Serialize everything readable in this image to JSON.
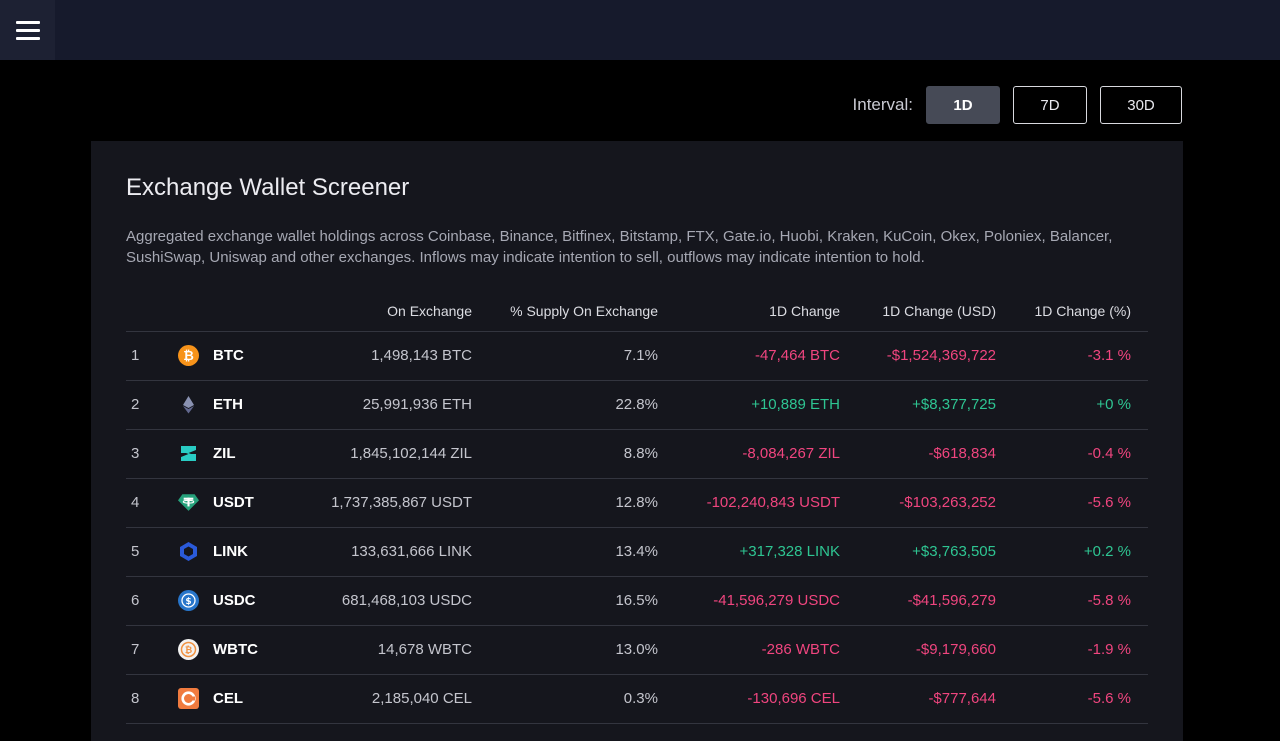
{
  "interval": {
    "label": "Interval:",
    "options": [
      "1D",
      "7D",
      "30D"
    ],
    "active": "1D"
  },
  "screener": {
    "title": "Exchange Wallet Screener",
    "description": "Aggregated exchange wallet holdings across Coinbase, Binance, Bitfinex, Bitstamp, FTX, Gate.io, Huobi, Kraken, KuCoin, Okex, Poloniex, Balancer, SushiSwap, Uniswap and other exchanges. Inflows may indicate intention to sell, outflows may indicate intention to hold."
  },
  "table": {
    "columns": [
      "On Exchange",
      "% Supply On Exchange",
      "1D Change",
      "1D Change (USD)",
      "1D Change (%)"
    ],
    "rows": [
      {
        "rank": "1",
        "symbol": "BTC",
        "icon": "bitcoin-icon",
        "on_exchange": "1,498,143 BTC",
        "supply": "7.1%",
        "change": "-47,464 BTC",
        "change_usd": "-$1,524,369,722",
        "change_pct": "-3.1 %",
        "direction": "neg"
      },
      {
        "rank": "2",
        "symbol": "ETH",
        "icon": "ethereum-icon",
        "on_exchange": "25,991,936 ETH",
        "supply": "22.8%",
        "change": "+10,889 ETH",
        "change_usd": "+$8,377,725",
        "change_pct": "+0 %",
        "direction": "pos"
      },
      {
        "rank": "3",
        "symbol": "ZIL",
        "icon": "zilliqa-icon",
        "on_exchange": "1,845,102,144 ZIL",
        "supply": "8.8%",
        "change": "-8,084,267 ZIL",
        "change_usd": "-$618,834",
        "change_pct": "-0.4 %",
        "direction": "neg"
      },
      {
        "rank": "4",
        "symbol": "USDT",
        "icon": "tether-icon",
        "on_exchange": "1,737,385,867 USDT",
        "supply": "12.8%",
        "change": "-102,240,843 USDT",
        "change_usd": "-$103,263,252",
        "change_pct": "-5.6 %",
        "direction": "neg"
      },
      {
        "rank": "5",
        "symbol": "LINK",
        "icon": "chainlink-icon",
        "on_exchange": "133,631,666 LINK",
        "supply": "13.4%",
        "change": "+317,328 LINK",
        "change_usd": "+$3,763,505",
        "change_pct": "+0.2 %",
        "direction": "pos"
      },
      {
        "rank": "6",
        "symbol": "USDC",
        "icon": "usd-coin-icon",
        "on_exchange": "681,468,103 USDC",
        "supply": "16.5%",
        "change": "-41,596,279 USDC",
        "change_usd": "-$41,596,279",
        "change_pct": "-5.8 %",
        "direction": "neg"
      },
      {
        "rank": "7",
        "symbol": "WBTC",
        "icon": "wrapped-bitcoin-icon",
        "on_exchange": "14,678 WBTC",
        "supply": "13.0%",
        "change": "-286 WBTC",
        "change_usd": "-$9,179,660",
        "change_pct": "-1.9 %",
        "direction": "neg"
      },
      {
        "rank": "8",
        "symbol": "CEL",
        "icon": "celsius-icon",
        "on_exchange": "2,185,040 CEL",
        "supply": "0.3%",
        "change": "-130,696 CEL",
        "change_usd": "-$777,644",
        "change_pct": "-5.6 %",
        "direction": "neg"
      }
    ]
  },
  "colors": {
    "negative": "#f0457f",
    "positive": "#2ec592",
    "panel": "#15161d",
    "topbar": "#161a2c"
  }
}
